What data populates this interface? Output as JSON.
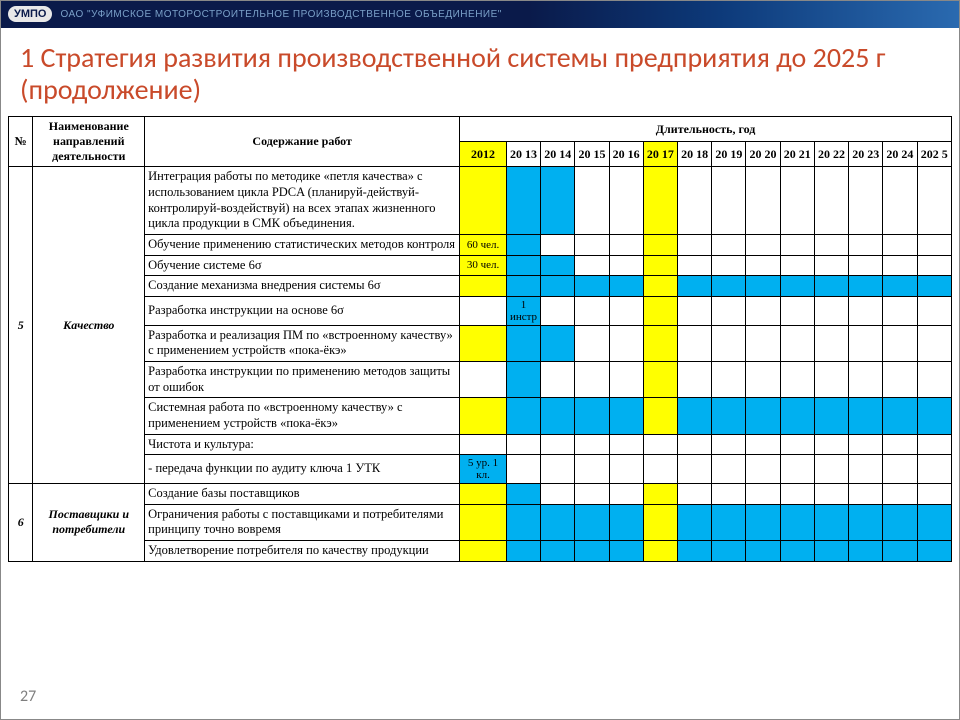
{
  "header": {
    "logo_text": "УМПО",
    "company_text": "ОАО \"УФИМСКОЕ МОТОРОСТРОИТЕЛЬНОЕ ПРОИЗВОДСТВЕННОЕ ОБЪЕДИНЕНИЕ\""
  },
  "title": "1 Стратегия развития производственной системы предприятия до 2025 г (продолжение)",
  "page_number": "27",
  "colors": {
    "yellow": "#ffff00",
    "blue": "#00b0f0",
    "header_accent": "#c94a2a"
  },
  "columns": {
    "num": "№",
    "direction": "Наименование направлений деятельности",
    "work": "Содержание работ",
    "duration": "Длительность, год",
    "years": [
      "2012",
      "20 13",
      "20 14",
      "20 15",
      "20 16",
      "20 17",
      "20 18",
      "20 19",
      "20 20",
      "20 21",
      "20 22",
      "20 23",
      "20 24",
      "202 5"
    ],
    "year_header_highlight": [
      "yellow",
      "",
      "",
      "",
      "",
      "yellow",
      "",
      "",
      "",
      "",
      "",
      "",
      "",
      ""
    ],
    "widths": {
      "num": 24,
      "direction": 110,
      "work": 310,
      "year_first": 46,
      "year_rest_total": 438
    }
  },
  "groups": [
    {
      "num": "5",
      "direction": "Качество",
      "rows": [
        {
          "work": "Интеграция работы по методике «петля качества» с использованием цикла PDCA (планируй-действуй-контролируй-воздействуй) на всех этапах жизненного цикла продукции в СМК объединения.",
          "cells": [
            {
              "t": "",
              "c": "yellow"
            },
            {
              "t": "",
              "c": "blue"
            },
            {
              "t": "",
              "c": "blue"
            },
            {
              "t": "",
              "c": ""
            },
            {
              "t": "",
              "c": ""
            },
            {
              "t": "",
              "c": "yellow"
            },
            {
              "t": "",
              "c": ""
            },
            {
              "t": "",
              "c": ""
            },
            {
              "t": "",
              "c": ""
            },
            {
              "t": "",
              "c": ""
            },
            {
              "t": "",
              "c": ""
            },
            {
              "t": "",
              "c": ""
            },
            {
              "t": "",
              "c": ""
            },
            {
              "t": "",
              "c": ""
            }
          ]
        },
        {
          "work": "Обучение применению статистических методов контроля",
          "cells": [
            {
              "t": "60 чел.",
              "c": "yellow"
            },
            {
              "t": "",
              "c": "blue"
            },
            {
              "t": "",
              "c": ""
            },
            {
              "t": "",
              "c": ""
            },
            {
              "t": "",
              "c": ""
            },
            {
              "t": "",
              "c": "yellow"
            },
            {
              "t": "",
              "c": ""
            },
            {
              "t": "",
              "c": ""
            },
            {
              "t": "",
              "c": ""
            },
            {
              "t": "",
              "c": ""
            },
            {
              "t": "",
              "c": ""
            },
            {
              "t": "",
              "c": ""
            },
            {
              "t": "",
              "c": ""
            },
            {
              "t": "",
              "c": ""
            }
          ]
        },
        {
          "work": "Обучение системе 6σ",
          "cells": [
            {
              "t": "30 чел.",
              "c": "yellow"
            },
            {
              "t": "",
              "c": "blue"
            },
            {
              "t": "",
              "c": "blue"
            },
            {
              "t": "",
              "c": ""
            },
            {
              "t": "",
              "c": ""
            },
            {
              "t": "",
              "c": "yellow"
            },
            {
              "t": "",
              "c": ""
            },
            {
              "t": "",
              "c": ""
            },
            {
              "t": "",
              "c": ""
            },
            {
              "t": "",
              "c": ""
            },
            {
              "t": "",
              "c": ""
            },
            {
              "t": "",
              "c": ""
            },
            {
              "t": "",
              "c": ""
            },
            {
              "t": "",
              "c": ""
            }
          ]
        },
        {
          "work": "Создание механизма внедрения системы 6σ",
          "cells": [
            {
              "t": "",
              "c": "yellow"
            },
            {
              "t": "",
              "c": "blue"
            },
            {
              "t": "",
              "c": "blue"
            },
            {
              "t": "",
              "c": "blue"
            },
            {
              "t": "",
              "c": "blue"
            },
            {
              "t": "",
              "c": "yellow"
            },
            {
              "t": "",
              "c": "blue"
            },
            {
              "t": "",
              "c": "blue"
            },
            {
              "t": "",
              "c": "blue"
            },
            {
              "t": "",
              "c": "blue"
            },
            {
              "t": "",
              "c": "blue"
            },
            {
              "t": "",
              "c": "blue"
            },
            {
              "t": "",
              "c": "blue"
            },
            {
              "t": "",
              "c": "blue"
            }
          ]
        },
        {
          "work": "Разработка инструкции на основе 6σ",
          "cells": [
            {
              "t": "",
              "c": ""
            },
            {
              "t": "1 инстр",
              "c": "blue"
            },
            {
              "t": "",
              "c": ""
            },
            {
              "t": "",
              "c": ""
            },
            {
              "t": "",
              "c": ""
            },
            {
              "t": "",
              "c": "yellow"
            },
            {
              "t": "",
              "c": ""
            },
            {
              "t": "",
              "c": ""
            },
            {
              "t": "",
              "c": ""
            },
            {
              "t": "",
              "c": ""
            },
            {
              "t": "",
              "c": ""
            },
            {
              "t": "",
              "c": ""
            },
            {
              "t": "",
              "c": ""
            },
            {
              "t": "",
              "c": ""
            }
          ]
        },
        {
          "work": "Разработка и реализация ПМ по «встроенному качеству» с применением устройств «пока-ёкэ»",
          "cells": [
            {
              "t": "",
              "c": "yellow"
            },
            {
              "t": "",
              "c": "blue"
            },
            {
              "t": "",
              "c": "blue"
            },
            {
              "t": "",
              "c": ""
            },
            {
              "t": "",
              "c": ""
            },
            {
              "t": "",
              "c": "yellow"
            },
            {
              "t": "",
              "c": ""
            },
            {
              "t": "",
              "c": ""
            },
            {
              "t": "",
              "c": ""
            },
            {
              "t": "",
              "c": ""
            },
            {
              "t": "",
              "c": ""
            },
            {
              "t": "",
              "c": ""
            },
            {
              "t": "",
              "c": ""
            },
            {
              "t": "",
              "c": ""
            }
          ]
        },
        {
          "work": "Разработка инструкции по применению методов защиты от ошибок",
          "cells": [
            {
              "t": "",
              "c": ""
            },
            {
              "t": "",
              "c": "blue"
            },
            {
              "t": "",
              "c": ""
            },
            {
              "t": "",
              "c": ""
            },
            {
              "t": "",
              "c": ""
            },
            {
              "t": "",
              "c": "yellow"
            },
            {
              "t": "",
              "c": ""
            },
            {
              "t": "",
              "c": ""
            },
            {
              "t": "",
              "c": ""
            },
            {
              "t": "",
              "c": ""
            },
            {
              "t": "",
              "c": ""
            },
            {
              "t": "",
              "c": ""
            },
            {
              "t": "",
              "c": ""
            },
            {
              "t": "",
              "c": ""
            }
          ]
        },
        {
          "work": "Системная работа по «встроенному качеству» с применением устройств «пока-ёкэ»",
          "cells": [
            {
              "t": "",
              "c": "yellow"
            },
            {
              "t": "",
              "c": "blue"
            },
            {
              "t": "",
              "c": "blue"
            },
            {
              "t": "",
              "c": "blue"
            },
            {
              "t": "",
              "c": "blue"
            },
            {
              "t": "",
              "c": "yellow"
            },
            {
              "t": "",
              "c": "blue"
            },
            {
              "t": "",
              "c": "blue"
            },
            {
              "t": "",
              "c": "blue"
            },
            {
              "t": "",
              "c": "blue"
            },
            {
              "t": "",
              "c": "blue"
            },
            {
              "t": "",
              "c": "blue"
            },
            {
              "t": "",
              "c": "blue"
            },
            {
              "t": "",
              "c": "blue"
            }
          ]
        },
        {
          "work": "Чистота и культура:",
          "cells": [
            {
              "t": "",
              "c": ""
            },
            {
              "t": "",
              "c": ""
            },
            {
              "t": "",
              "c": ""
            },
            {
              "t": "",
              "c": ""
            },
            {
              "t": "",
              "c": ""
            },
            {
              "t": "",
              "c": ""
            },
            {
              "t": "",
              "c": ""
            },
            {
              "t": "",
              "c": ""
            },
            {
              "t": "",
              "c": ""
            },
            {
              "t": "",
              "c": ""
            },
            {
              "t": "",
              "c": ""
            },
            {
              "t": "",
              "c": ""
            },
            {
              "t": "",
              "c": ""
            },
            {
              "t": "",
              "c": ""
            }
          ]
        },
        {
          "work": "- передача функции  по аудиту ключа 1 УТК",
          "cells": [
            {
              "t": "5 ур. 1 кл.",
              "c": "blue"
            },
            {
              "t": "",
              "c": ""
            },
            {
              "t": "",
              "c": ""
            },
            {
              "t": "",
              "c": ""
            },
            {
              "t": "",
              "c": ""
            },
            {
              "t": "",
              "c": ""
            },
            {
              "t": "",
              "c": ""
            },
            {
              "t": "",
              "c": ""
            },
            {
              "t": "",
              "c": ""
            },
            {
              "t": "",
              "c": ""
            },
            {
              "t": "",
              "c": ""
            },
            {
              "t": "",
              "c": ""
            },
            {
              "t": "",
              "c": ""
            },
            {
              "t": "",
              "c": ""
            }
          ]
        }
      ]
    },
    {
      "num": "6",
      "direction": "Поставщики и потребители",
      "rows": [
        {
          "work": "Создание базы поставщиков",
          "cells": [
            {
              "t": "",
              "c": "yellow"
            },
            {
              "t": "",
              "c": "blue"
            },
            {
              "t": "",
              "c": ""
            },
            {
              "t": "",
              "c": ""
            },
            {
              "t": "",
              "c": ""
            },
            {
              "t": "",
              "c": "yellow"
            },
            {
              "t": "",
              "c": ""
            },
            {
              "t": "",
              "c": ""
            },
            {
              "t": "",
              "c": ""
            },
            {
              "t": "",
              "c": ""
            },
            {
              "t": "",
              "c": ""
            },
            {
              "t": "",
              "c": ""
            },
            {
              "t": "",
              "c": ""
            },
            {
              "t": "",
              "c": ""
            }
          ]
        },
        {
          "work": "Ограничения работы с поставщиками и потребителями принципу точно вовремя",
          "cells": [
            {
              "t": "",
              "c": "yellow"
            },
            {
              "t": "",
              "c": "blue"
            },
            {
              "t": "",
              "c": "blue"
            },
            {
              "t": "",
              "c": "blue"
            },
            {
              "t": "",
              "c": "blue"
            },
            {
              "t": "",
              "c": "yellow"
            },
            {
              "t": "",
              "c": "blue"
            },
            {
              "t": "",
              "c": "blue"
            },
            {
              "t": "",
              "c": "blue"
            },
            {
              "t": "",
              "c": "blue"
            },
            {
              "t": "",
              "c": "blue"
            },
            {
              "t": "",
              "c": "blue"
            },
            {
              "t": "",
              "c": "blue"
            },
            {
              "t": "",
              "c": "blue"
            }
          ]
        },
        {
          "work": "Удовлетворение потребителя по качеству продукции",
          "cells": [
            {
              "t": "",
              "c": "yellow"
            },
            {
              "t": "",
              "c": "blue"
            },
            {
              "t": "",
              "c": "blue"
            },
            {
              "t": "",
              "c": "blue"
            },
            {
              "t": "",
              "c": "blue"
            },
            {
              "t": "",
              "c": "yellow"
            },
            {
              "t": "",
              "c": "blue"
            },
            {
              "t": "",
              "c": "blue"
            },
            {
              "t": "",
              "c": "blue"
            },
            {
              "t": "",
              "c": "blue"
            },
            {
              "t": "",
              "c": "blue"
            },
            {
              "t": "",
              "c": "blue"
            },
            {
              "t": "",
              "c": "blue"
            },
            {
              "t": "",
              "c": "blue"
            }
          ]
        }
      ]
    }
  ]
}
